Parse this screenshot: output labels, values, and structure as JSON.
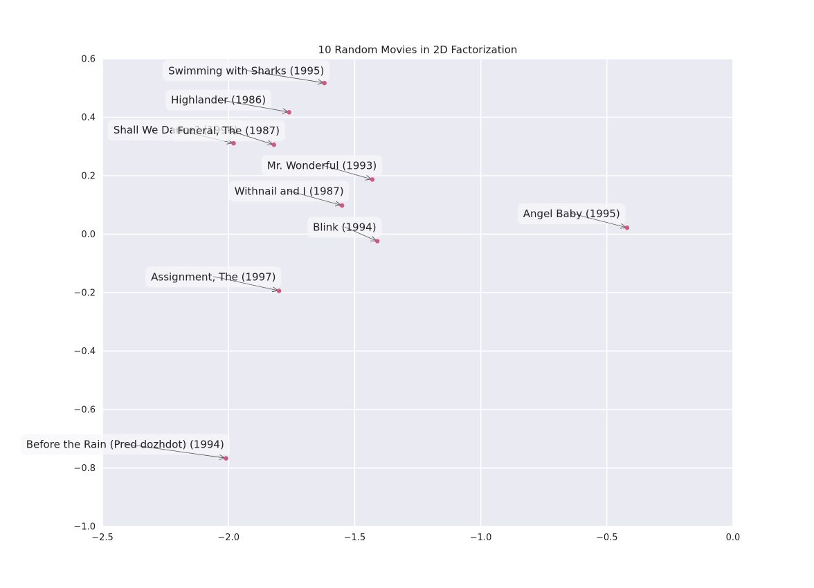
{
  "chart_data": {
    "type": "scatter",
    "title": "10 Random Movies in 2D Factorization",
    "xlabel": "",
    "ylabel": "",
    "xlim": [
      -2.5,
      0.0
    ],
    "ylim": [
      -1.0,
      0.6
    ],
    "grid": true,
    "colors": {
      "background": "#EAEAF2",
      "grid": "#FFFFFF",
      "point": "#D0577F",
      "label_box": "#F7F7FA",
      "arrow": "#555555",
      "text": "#222222"
    },
    "x_ticks": [
      {
        "value": -2.5,
        "label": "−2.5"
      },
      {
        "value": -2.0,
        "label": "−2.0"
      },
      {
        "value": -1.5,
        "label": "−1.5"
      },
      {
        "value": -1.0,
        "label": "−1.0"
      },
      {
        "value": -0.5,
        "label": "−0.5"
      },
      {
        "value": 0.0,
        "label": "0.0"
      }
    ],
    "y_ticks": [
      {
        "value": 0.6,
        "label": "0.6"
      },
      {
        "value": 0.4,
        "label": "0.4"
      },
      {
        "value": 0.2,
        "label": "0.2"
      },
      {
        "value": 0.0,
        "label": "0.0"
      },
      {
        "value": -0.2,
        "label": "−0.2"
      },
      {
        "value": -0.4,
        "label": "−0.4"
      },
      {
        "value": -0.6,
        "label": "−0.6"
      },
      {
        "value": -0.8,
        "label": "−0.8"
      },
      {
        "value": -1.0,
        "label": "−1.0"
      }
    ],
    "points": [
      {
        "label": "Swimming with Sharks (1995)",
        "x": -1.62,
        "y": 0.517,
        "label_x": -1.93,
        "label_y": 0.56
      },
      {
        "label": "Highlander (1986)",
        "x": -1.76,
        "y": 0.417,
        "label_x": -2.04,
        "label_y": 0.46
      },
      {
        "label": "Shall We Dance? (1996)",
        "x": -1.98,
        "y": 0.311,
        "label_x": -2.21,
        "label_y": 0.357
      },
      {
        "label": "Funeral, The (1987)",
        "x": -1.82,
        "y": 0.306,
        "label_x": -2.0,
        "label_y": 0.355
      },
      {
        "label": "Mr. Wonderful (1993)",
        "x": -1.43,
        "y": 0.187,
        "label_x": -1.63,
        "label_y": 0.236
      },
      {
        "label": "Withnail and I (1987)",
        "x": -1.55,
        "y": 0.098,
        "label_x": -1.76,
        "label_y": 0.148
      },
      {
        "label": "Blink (1994)",
        "x": -1.41,
        "y": -0.024,
        "label_x": -1.54,
        "label_y": 0.025
      },
      {
        "label": "Angel Baby (1995)",
        "x": -0.42,
        "y": 0.022,
        "label_x": -0.64,
        "label_y": 0.071
      },
      {
        "label": "Assignment, The (1997)",
        "x": -1.8,
        "y": -0.194,
        "label_x": -2.06,
        "label_y": -0.145
      },
      {
        "label": "Before the Rain (Pred dozhdot) (1994)",
        "x": -2.01,
        "y": -0.767,
        "label_x": -2.41,
        "label_y": -0.718
      }
    ]
  }
}
